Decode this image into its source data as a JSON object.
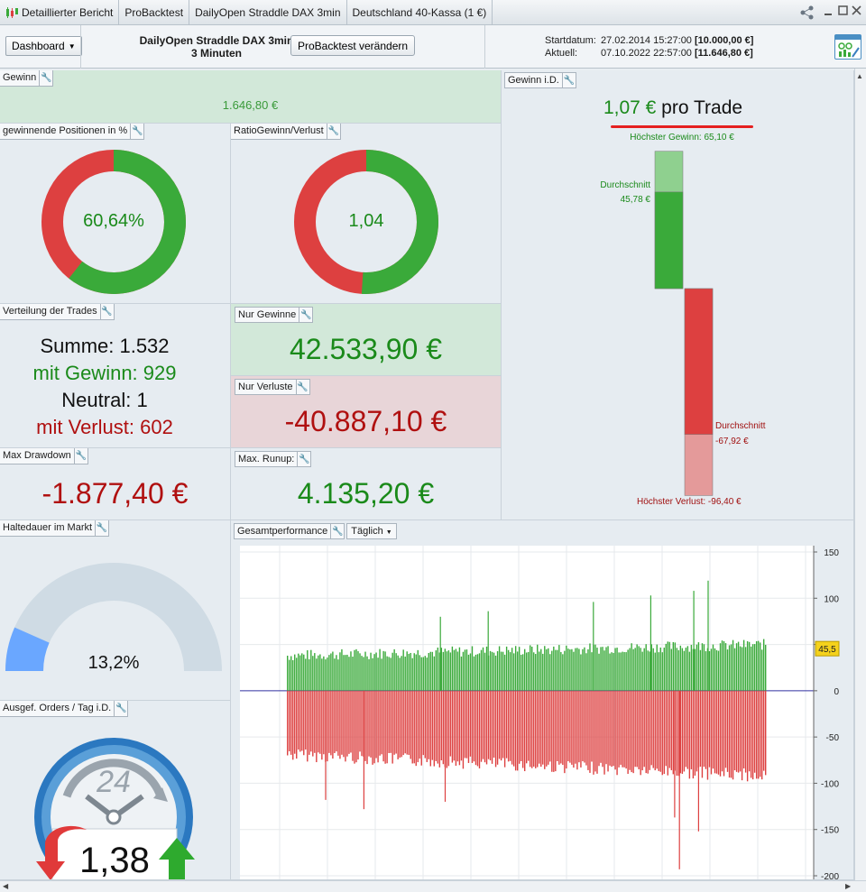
{
  "tabs": [
    {
      "label": "Detaillierter Bericht"
    },
    {
      "label": "ProBacktest"
    },
    {
      "label": "DailyOpen Straddle DAX 3min"
    },
    {
      "label": "Deutschland 40-Kassa (1 €)"
    }
  ],
  "header": {
    "dashboard_label": "Dashboard",
    "strategy_name": "DailyOpen Straddle DAX 3min",
    "timeframe": "3 Minuten",
    "probacktest_button": "ProBacktest verändern",
    "start_label": "Startdatum:",
    "start_value": "27.02.2014 15:27:00",
    "start_capital": "[10.000,00 €]",
    "current_label": "Aktuell:",
    "current_value": "07.10.2022 22:57:00",
    "current_capital": "[11.646,80 €]"
  },
  "gewinn": {
    "title": "Gewinn",
    "value": "1.646,80 €"
  },
  "winning_positions": {
    "title": "gewinnende Positionen in %",
    "value": "60,64%",
    "fraction": 0.6064
  },
  "ratio": {
    "title": "RatioGewinn/Verlust",
    "value": "1,04",
    "fraction": 0.51
  },
  "trade_dist": {
    "title": "Verteilung der Trades",
    "sum": "Summe: 1.532",
    "win": "mit Gewinn: 929",
    "neutral": "Neutral: 1",
    "loss": "mit Verlust: 602"
  },
  "only_gains": {
    "title": "Nur Gewinne",
    "value": "42.533,90 €"
  },
  "only_losses": {
    "title": "Nur Verluste",
    "value": "-40.887,10 €"
  },
  "max_drawdown": {
    "title": "Max Drawdown",
    "value": "-1.877,40 €"
  },
  "max_runup": {
    "title": "Max. Runup:",
    "value": "4.135,20 €"
  },
  "holding": {
    "title": "Haltedauer im Markt",
    "value": "13,2%",
    "fraction": 0.132
  },
  "orders": {
    "title": "Ausgef. Orders / Tag i.D.",
    "clock_label": "24",
    "value": "1,38"
  },
  "gewinn_id": {
    "title": "Gewinn i.D.",
    "per_trade_value": "1,07 €",
    "per_trade_suffix": "pro Trade",
    "max_gain_label": "Höchster Gewinn: 65,10 €",
    "avg_gain_label": "Durchschnitt",
    "avg_gain_value": "45,78 €",
    "avg_loss_label": "Durchschnitt",
    "avg_loss_value": "-67,92 €",
    "max_loss_label": "Höchster Verlust: -96,40 €",
    "max_gain": 65.1,
    "avg_gain": 45.78,
    "avg_loss": -67.92,
    "max_loss": -96.4
  },
  "performance": {
    "title": "Gesamtperformance",
    "period": "Täglich",
    "current_marker": "45,5"
  },
  "colors": {
    "gain": "#3aaa3a",
    "loss": "#dd4040",
    "gain_light": "#8fd08f",
    "loss_light": "#e49a9a",
    "gauge_fill": "#6aa7ff",
    "gauge_track": "#cfdbe4",
    "marker": "#f5d21c"
  },
  "chart_data": {
    "type": "bar",
    "title": "Gesamtperformance",
    "period": "Täglich",
    "ylim": [
      -200,
      150
    ],
    "y_ticks": [
      150,
      100,
      50,
      0,
      -50,
      -100,
      -150,
      -200
    ],
    "y_tick_labels": [
      "150",
      "100",
      "50",
      "0",
      "-50",
      "-100",
      "-150",
      "-200"
    ],
    "current_value": 45.5,
    "grid": true,
    "series": [
      {
        "name": "Gewinn",
        "trend_start": 38,
        "trend_end": 50,
        "max": 119,
        "count": 929
      },
      {
        "name": "Verlust",
        "trend_start": -62,
        "trend_end": -85,
        "min": -193,
        "count": 602
      }
    ]
  }
}
